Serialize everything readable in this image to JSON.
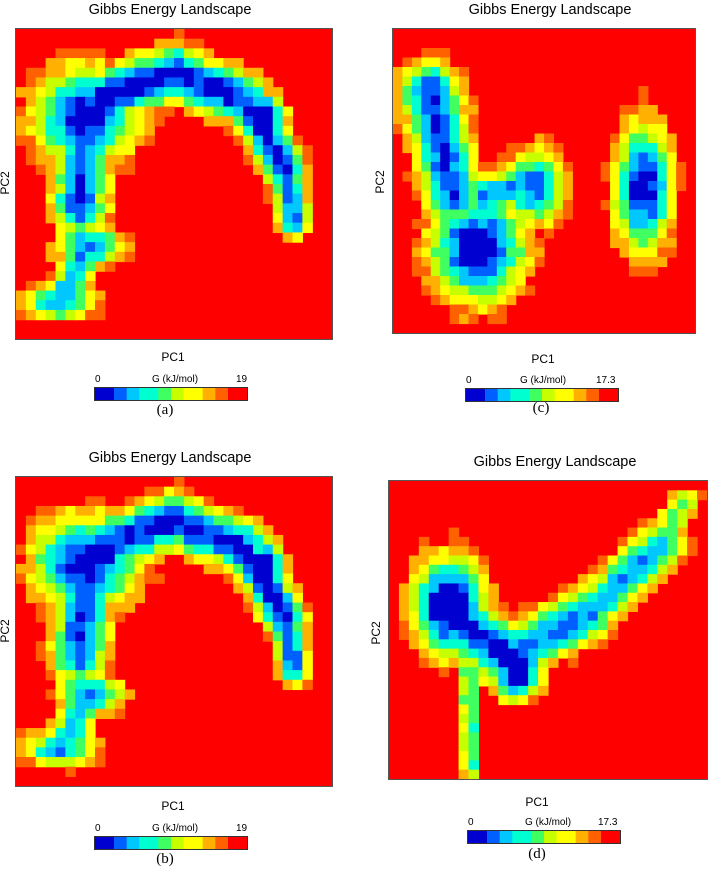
{
  "chart_data": [
    {
      "type": "heatmap",
      "panel_label": "(a)",
      "title": "Gibbs Energy Landscape",
      "xlabel": "PC1",
      "ylabel": "PC2",
      "colorbar": {
        "label": "G (kJ/mol)",
        "min": "0",
        "max": "19"
      },
      "grid_size": [
        32,
        32
      ],
      "colormap": [
        "#0000d0",
        "#0060ff",
        "#00c8ff",
        "#00ffd0",
        "#40ff60",
        "#c8ff00",
        "#ffff00",
        "#ffb000",
        "#ff6000",
        "#ff0000"
      ],
      "description_of_basins": "L-shaped connected basin: upper-left lobe, arc to the right ending at a deep minimum near upper-right, and a lower-left tail"
    },
    {
      "type": "heatmap",
      "panel_label": "(b)",
      "title": "Gibbs Energy Landscape",
      "xlabel": "PC1",
      "ylabel": "PC2",
      "colorbar": {
        "label": "G (kJ/mol)",
        "min": "0",
        "max": "19"
      },
      "grid_size": [
        32,
        32
      ],
      "colormap": [
        "#0000d0",
        "#0060ff",
        "#00c8ff",
        "#00ffd0",
        "#40ff60",
        "#c8ff00",
        "#ffff00",
        "#ffb000",
        "#ff6000",
        "#ff0000"
      ]
    },
    {
      "type": "heatmap",
      "panel_label": "(c)",
      "title": "Gibbs Energy Landscape",
      "xlabel": "PC1",
      "ylabel": "PC2",
      "colorbar": {
        "label": "G (kJ/mol)",
        "min": "0",
        "max": "17.3"
      },
      "grid_size": [
        32,
        32
      ],
      "colormap": [
        "#0000d0",
        "#0060ff",
        "#00c8ff",
        "#00ffd0",
        "#40ff60",
        "#c8ff00",
        "#ffff00",
        "#ffb000",
        "#ff6000",
        "#ff0000"
      ]
    },
    {
      "type": "heatmap",
      "panel_label": "(d)",
      "title": "Gibbs Energy Landscape",
      "xlabel": "PC1",
      "ylabel": "PC2",
      "colorbar": {
        "label": "G (kJ/mol)",
        "min": "0",
        "max": "17.3"
      },
      "grid_size": [
        32,
        32
      ],
      "colormap": [
        "#0000d0",
        "#0060ff",
        "#00c8ff",
        "#00ffd0",
        "#40ff60",
        "#c8ff00",
        "#ffff00",
        "#ffb000",
        "#ff6000",
        "#ff0000"
      ]
    }
  ]
}
